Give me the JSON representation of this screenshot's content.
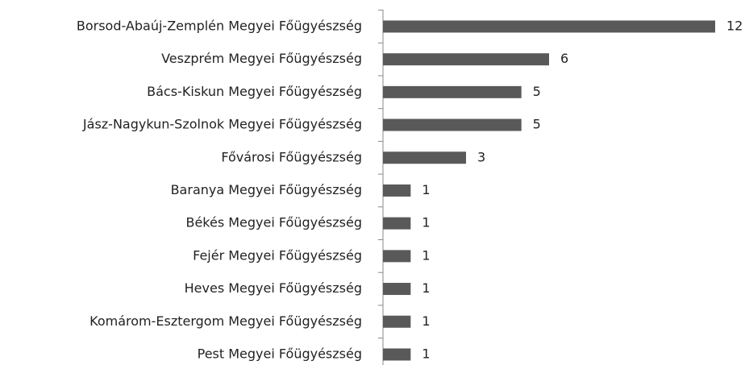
{
  "chart_data": {
    "type": "hbar",
    "color": "#595959",
    "categories": [
      "Borsod-Abaúj-Zemplén Megyei Főügyészség",
      "Veszprém Megyei Főügyészség",
      "Bács-Kiskun Megyei Főügyészség",
      "Jász-Nagykun-Szolnok Megyei Főügyészség",
      "Fővárosi Főügyészség",
      "Baranya Megyei Főügyészség",
      "Békés Megyei Főügyészség",
      "Fejér Megyei Főügyészség",
      "Heves Megyei Főügyészség",
      "Komárom-Esztergom Megyei Főügyészség",
      "Pest Megyei Főügyészség"
    ],
    "values": [
      12,
      6,
      5,
      5,
      3,
      1,
      1,
      1,
      1,
      1,
      1
    ]
  }
}
